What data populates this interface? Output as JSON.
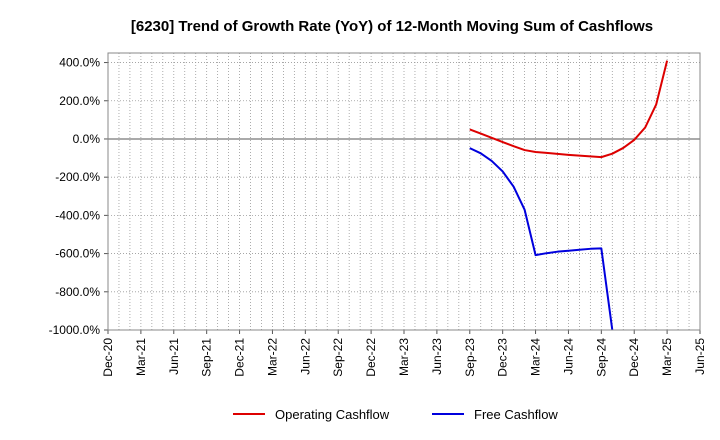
{
  "chart_data": {
    "type": "line",
    "title": "[6230]  Trend of Growth Rate (YoY) of 12-Month Moving Sum of Cashflows",
    "xlabel": "",
    "ylabel": "",
    "ylim": [
      -1000,
      450
    ],
    "y_ticks": [
      400,
      200,
      0,
      -200,
      -400,
      -600,
      -800,
      -1000
    ],
    "y_tick_labels": [
      "400.0%",
      "200.0%",
      "0.0%",
      "-200.0%",
      "-400.0%",
      "-600.0%",
      "-800.0%",
      "-1000.0%"
    ],
    "x_range": [
      "2020-12",
      "2025-06"
    ],
    "x_ticks": [
      "2020-12",
      "2021-03",
      "2021-06",
      "2021-09",
      "2021-12",
      "2022-03",
      "2022-06",
      "2022-09",
      "2022-12",
      "2023-03",
      "2023-06",
      "2023-09",
      "2023-12",
      "2024-03",
      "2024-06",
      "2024-09",
      "2024-12",
      "2025-03",
      "2025-06"
    ],
    "x_tick_labels": [
      "Dec-20",
      "Mar-21",
      "Jun-21",
      "Sep-21",
      "Dec-21",
      "Mar-22",
      "Jun-22",
      "Sep-22",
      "Dec-22",
      "Mar-23",
      "Jun-23",
      "Sep-23",
      "Dec-23",
      "Mar-24",
      "Jun-24",
      "Sep-24",
      "Dec-24",
      "Mar-25",
      "Jun-25"
    ],
    "grid": true,
    "legend_position": "bottom",
    "series": [
      {
        "name": "Operating Cashflow",
        "color": "#dd0000",
        "points": [
          [
            "2023-09",
            50
          ],
          [
            "2023-10",
            28
          ],
          [
            "2023-11",
            6
          ],
          [
            "2023-12",
            -16
          ],
          [
            "2024-01",
            -38
          ],
          [
            "2024-02",
            -58
          ],
          [
            "2024-03",
            -68
          ],
          [
            "2024-04",
            -73
          ],
          [
            "2024-05",
            -78
          ],
          [
            "2024-06",
            -83
          ],
          [
            "2024-07",
            -87
          ],
          [
            "2024-08",
            -91
          ],
          [
            "2024-09",
            -95
          ],
          [
            "2024-10",
            -77
          ],
          [
            "2024-11",
            -47
          ],
          [
            "2024-12",
            -5
          ],
          [
            "2025-01",
            60
          ],
          [
            "2025-02",
            180
          ],
          [
            "2025-03",
            410
          ]
        ]
      },
      {
        "name": "Free Cashflow",
        "color": "#0000dd",
        "points": [
          [
            "2023-09",
            -48
          ],
          [
            "2023-10",
            -75
          ],
          [
            "2023-11",
            -115
          ],
          [
            "2023-12",
            -170
          ],
          [
            "2024-01",
            -250
          ],
          [
            "2024-02",
            -370
          ],
          [
            "2024-03",
            -608
          ],
          [
            "2024-04",
            -598
          ],
          [
            "2024-05",
            -590
          ],
          [
            "2024-06",
            -585
          ],
          [
            "2024-07",
            -580
          ],
          [
            "2024-08",
            -575
          ],
          [
            "2024-09",
            -573
          ],
          [
            "2024-10",
            -1000
          ]
        ]
      }
    ]
  }
}
